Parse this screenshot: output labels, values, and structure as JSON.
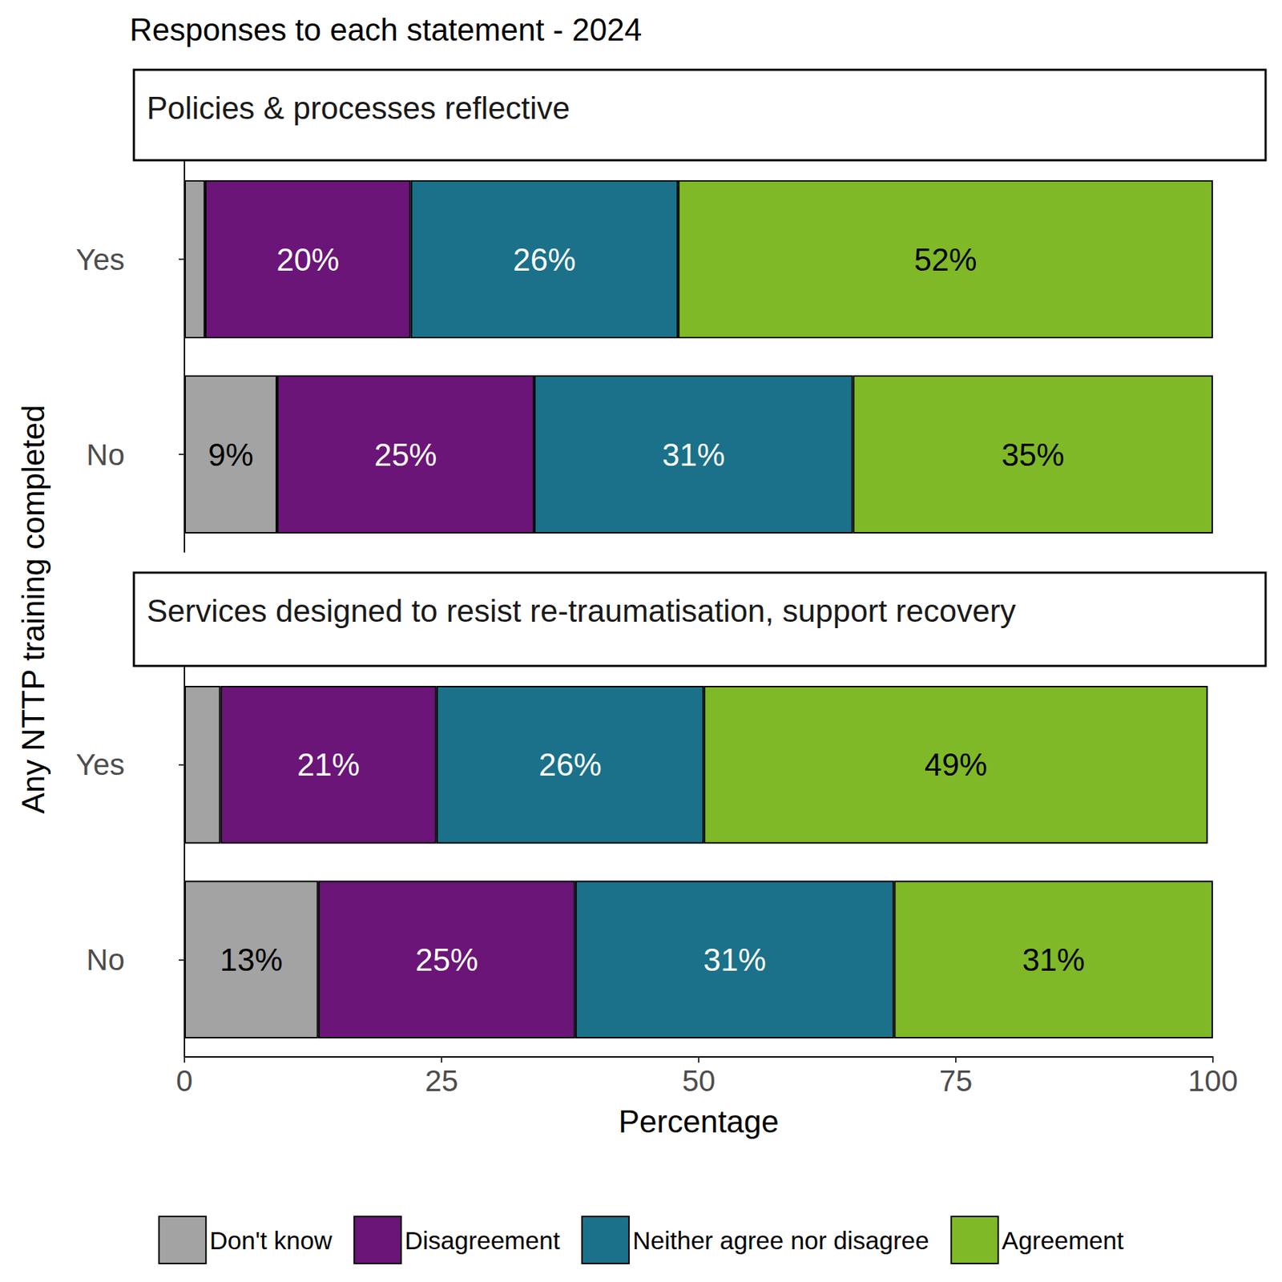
{
  "chart_data": {
    "type": "bar",
    "title": "Responses to each statement - 2024",
    "x_label": "Percentage",
    "y_label": "Any NTTP training completed",
    "orientation": "horizontal",
    "stacked": true,
    "data_labels": true,
    "grid": false,
    "legend": "bottom",
    "xlim": [
      0,
      100
    ],
    "xticks": [
      0,
      25,
      50,
      75,
      100
    ],
    "categories": [
      "Yes",
      "No"
    ],
    "series": [
      {
        "name": "Don't know",
        "color": "#a3a3a3"
      },
      {
        "name": "Disagreement",
        "color": "#6a1577"
      },
      {
        "name": "Neither agree nor disagree",
        "color": "#1a7189"
      },
      {
        "name": "Agreement",
        "color": "#80b927"
      }
    ],
    "panels": [
      {
        "title": "Policies & processes reflective",
        "values": [
          [
            2,
            9
          ],
          [
            20,
            25
          ],
          [
            26,
            31
          ],
          [
            52,
            35
          ]
        ],
        "value_labels": [
          [
            null,
            "9%"
          ],
          [
            "20%",
            "25%"
          ],
          [
            "26%",
            "31%"
          ],
          [
            "52%",
            "35%"
          ]
        ]
      },
      {
        "title": "Services designed to resist re-traumatisation, support recovery",
        "values": [
          [
            3.5,
            13
          ],
          [
            21,
            25
          ],
          [
            26,
            31
          ],
          [
            49,
            31
          ]
        ],
        "value_labels": [
          [
            null,
            "13%"
          ],
          [
            "21%",
            "25%"
          ],
          [
            "26%",
            "31%"
          ],
          [
            "49%",
            "31%"
          ]
        ]
      }
    ]
  }
}
